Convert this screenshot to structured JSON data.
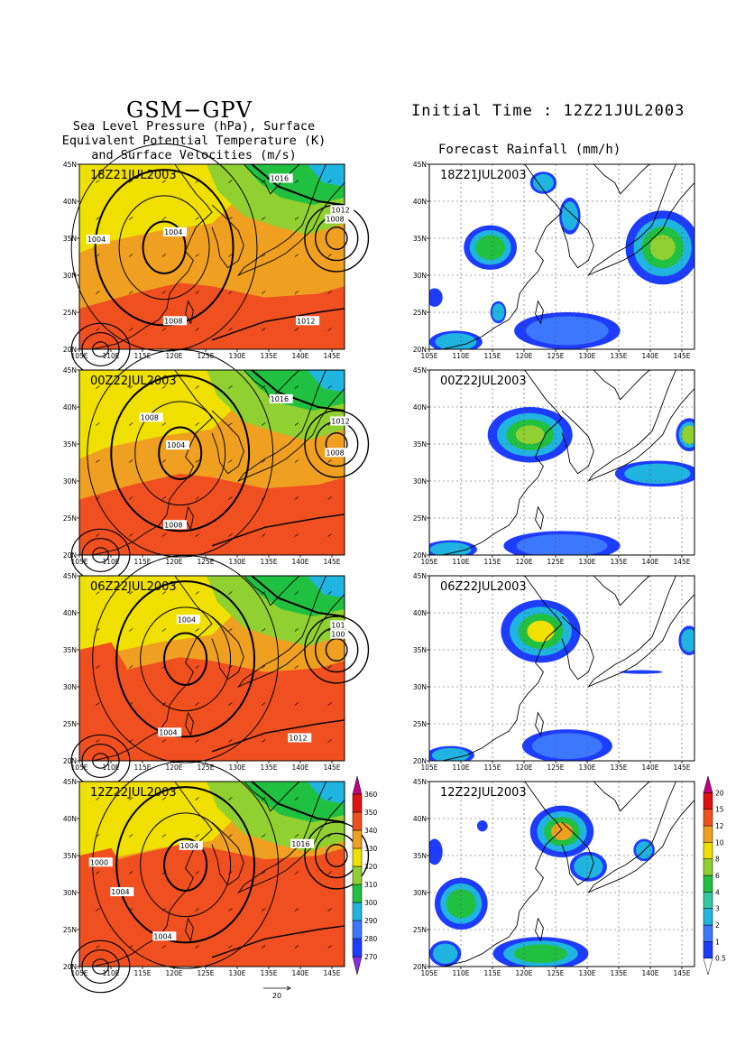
{
  "header": {
    "title": "GSM−GPV",
    "subtitle_lines": [
      "Sea Level Pressure (hPa), Surface",
      "Equivalent Potential Temperature (K)",
      "and Surface Velocities (m/s)"
    ],
    "initial_time": "Initial Time : 12Z21JUL2003",
    "rain_title": "Forecast Rainfall (mm/h)"
  },
  "axes": {
    "lat_labels": [
      "45N",
      "40N",
      "35N",
      "30N",
      "25N",
      "20N"
    ],
    "lon_labels": [
      "105E",
      "110E",
      "115E",
      "120E",
      "125E",
      "130E",
      "135E",
      "140E",
      "145E"
    ]
  },
  "panels": [
    {
      "time": "18Z21JUL2003",
      "isobars": [
        {
          "label": "1016"
        },
        {
          "label": "1012"
        },
        {
          "label": "1008"
        },
        {
          "label": "1004"
        },
        {
          "label": "1004"
        },
        {
          "label": "1008"
        },
        {
          "label": "1012"
        }
      ]
    },
    {
      "time": "00Z22JUL2003",
      "isobars": [
        {
          "label": "1016"
        },
        {
          "label": "1012"
        },
        {
          "label": "1008"
        },
        {
          "label": "1004"
        },
        {
          "label": "1008"
        },
        {
          "label": "1008"
        }
      ]
    },
    {
      "time": "06Z22JUL2003",
      "isobars": [
        {
          "label": "1004"
        },
        {
          "label": "101"
        },
        {
          "label": "100"
        },
        {
          "label": "1004"
        },
        {
          "label": "1012"
        }
      ]
    },
    {
      "time": "12Z22JUL2003",
      "isobars": [
        {
          "label": "1004"
        },
        {
          "label": "1016"
        },
        {
          "label": "1000"
        },
        {
          "label": "1004"
        },
        {
          "label": "1004"
        }
      ]
    }
  ],
  "theta_colorbar": {
    "levels": [
      "270",
      "280",
      "290",
      "300",
      "310",
      "320",
      "330",
      "340",
      "350",
      "360"
    ],
    "colors": [
      "#8a2be2",
      "#1e3cff",
      "#3c78ff",
      "#20b4e0",
      "#20c040",
      "#90d030",
      "#f0e000",
      "#f0a020",
      "#f05020",
      "#e01010",
      "#c0007c"
    ]
  },
  "rain_colorbar": {
    "levels": [
      "0.5",
      "1",
      "2",
      "3",
      "4",
      "6",
      "8",
      "10",
      "12",
      "15",
      "20"
    ],
    "colors": [
      "#ffffff",
      "#1e3cff",
      "#3c78ff",
      "#20b4e0",
      "#30c8a0",
      "#20c040",
      "#90d030",
      "#f0e000",
      "#f0a020",
      "#f05020",
      "#e01010",
      "#c0007c"
    ]
  },
  "vector_scale": {
    "label": "20"
  }
}
